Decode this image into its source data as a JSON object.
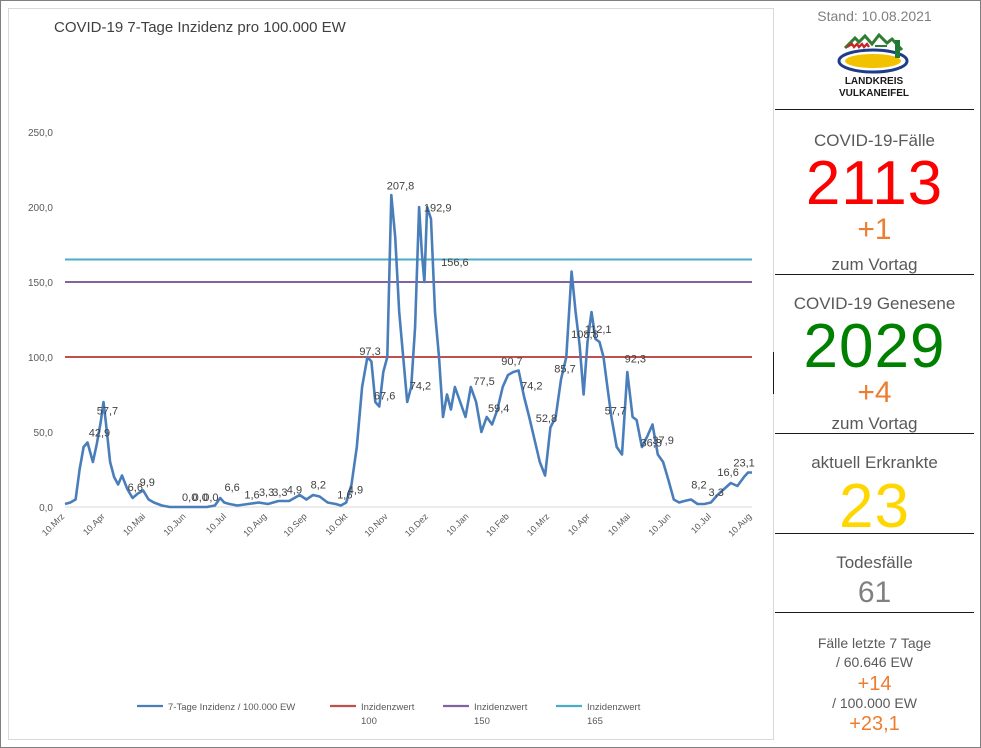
{
  "chart_data": {
    "type": "line",
    "title": "COVID-19 7-Tage Inzidenz pro 100.000 EW",
    "ylim": [
      0,
      250
    ],
    "yticks": [
      "0,0",
      "50,0",
      "100,0",
      "150,0",
      "200,0",
      "250,0"
    ],
    "x_start_date": "2020-03-10",
    "x_end_date": "2021-08-10",
    "xticks": [
      "10.Mrz",
      "10.Apr",
      "10.Mai",
      "10.Jun",
      "10.Jul",
      "10.Aug",
      "10.Sep",
      "10.Okt",
      "10.Nov",
      "10.Dez",
      "10.Jan",
      "10.Feb",
      "10.Mrz",
      "10.Apr",
      "10.Mai",
      "10.Jun",
      "10.Jul",
      "10.Aug"
    ],
    "grid": false,
    "legend_position": "bottom",
    "series": [
      {
        "name": "7-Tage Inzidenz / 100.000 EW",
        "color": "#4a7ebb",
        "x": [
          "2020-03-10",
          "2020-03-14",
          "2020-03-18",
          "2020-03-21",
          "2020-03-24",
          "2020-03-27",
          "2020-03-31",
          "2020-04-03",
          "2020-04-06",
          "2020-04-08",
          "2020-04-10",
          "2020-04-13",
          "2020-04-16",
          "2020-04-19",
          "2020-04-22",
          "2020-04-26",
          "2020-04-30",
          "2020-05-04",
          "2020-05-08",
          "2020-05-12",
          "2020-05-16",
          "2020-05-22",
          "2020-05-28",
          "2020-06-05",
          "2020-06-15",
          "2020-06-25",
          "2020-07-01",
          "2020-07-05",
          "2020-07-08",
          "2020-07-12",
          "2020-07-18",
          "2020-07-26",
          "2020-08-03",
          "2020-08-10",
          "2020-08-18",
          "2020-08-26",
          "2020-09-03",
          "2020-09-08",
          "2020-09-13",
          "2020-09-18",
          "2020-09-24",
          "2020-09-30",
          "2020-10-04",
          "2020-10-08",
          "2020-10-12",
          "2020-10-16",
          "2020-10-20",
          "2020-10-24",
          "2020-10-27",
          "2020-10-30",
          "2020-11-02",
          "2020-11-05",
          "2020-11-08",
          "2020-11-11",
          "2020-11-14",
          "2020-11-17",
          "2020-11-20",
          "2020-11-23",
          "2020-11-26",
          "2020-11-29",
          "2020-12-02",
          "2020-12-04",
          "2020-12-06",
          "2020-12-08",
          "2020-12-11",
          "2020-12-14",
          "2020-12-17",
          "2020-12-20",
          "2020-12-23",
          "2020-12-26",
          "2020-12-29",
          "2021-01-02",
          "2021-01-06",
          "2021-01-10",
          "2021-01-14",
          "2021-01-18",
          "2021-01-22",
          "2021-01-26",
          "2021-01-30",
          "2021-02-03",
          "2021-02-07",
          "2021-02-11",
          "2021-02-15",
          "2021-02-19",
          "2021-02-23",
          "2021-02-27",
          "2021-03-03",
          "2021-03-07",
          "2021-03-11",
          "2021-03-15",
          "2021-03-19",
          "2021-03-23",
          "2021-03-27",
          "2021-03-30",
          "2021-04-02",
          "2021-04-05",
          "2021-04-08",
          "2021-04-11",
          "2021-04-14",
          "2021-04-17",
          "2021-04-20",
          "2021-04-23",
          "2021-04-26",
          "2021-04-30",
          "2021-05-04",
          "2021-05-08",
          "2021-05-12",
          "2021-05-15",
          "2021-05-19",
          "2021-05-23",
          "2021-05-27",
          "2021-05-31",
          "2021-06-04",
          "2021-06-08",
          "2021-06-12",
          "2021-06-16",
          "2021-06-20",
          "2021-06-25",
          "2021-06-30",
          "2021-07-05",
          "2021-07-10",
          "2021-07-15",
          "2021-07-20",
          "2021-07-25",
          "2021-07-30",
          "2021-08-04",
          "2021-08-07",
          "2021-08-10"
        ],
        "y": [
          2,
          3,
          5,
          25,
          40,
          43,
          30,
          42,
          57,
          70,
          55,
          30,
          20,
          15,
          21,
          12,
          6,
          9,
          11,
          5,
          3,
          1,
          0,
          0,
          0,
          0,
          1,
          6,
          3,
          2,
          1,
          2,
          3,
          2,
          4,
          4,
          8,
          5,
          8,
          7,
          3,
          2,
          1,
          3,
          15,
          40,
          80,
          100,
          97,
          70,
          67,
          90,
          100,
          208,
          180,
          130,
          100,
          70,
          80,
          120,
          200,
          170,
          150,
          200,
          192,
          130,
          100,
          60,
          75,
          65,
          80,
          70,
          60,
          80,
          70,
          50,
          60,
          55,
          65,
          80,
          88,
          90,
          91,
          74,
          60,
          45,
          30,
          21,
          53,
          60,
          85,
          100,
          157,
          130,
          108,
          75,
          110,
          130,
          112,
          110,
          100,
          80,
          60,
          40,
          35,
          90,
          60,
          58,
          40,
          47,
          55,
          35,
          30,
          18,
          5,
          3,
          4,
          5,
          2,
          2,
          3,
          8,
          12,
          16,
          14,
          20,
          23,
          23
        ]
      }
    ],
    "reference_lines": [
      {
        "name": "Inzidenzwert 100",
        "value": 100,
        "color": "#c0504d"
      },
      {
        "name": "Inzidenzwert 150",
        "value": 150,
        "color": "#8064a2"
      },
      {
        "name": "Inzidenzwert 165",
        "value": 165,
        "color": "#4bacc6"
      }
    ],
    "annotations": [
      {
        "text": "42,9",
        "x": "2020-04-05",
        "y": 42.9
      },
      {
        "text": "57,7",
        "x": "2020-04-11",
        "y": 57.7
      },
      {
        "text": "6,6",
        "x": "2020-05-02",
        "y": 6.6
      },
      {
        "text": "9,9",
        "x": "2020-05-11",
        "y": 9.9
      },
      {
        "text": "0,0",
        "x": "2020-06-12",
        "y": 0
      },
      {
        "text": "0,0",
        "x": "2020-06-20",
        "y": 0
      },
      {
        "text": "0,0",
        "x": "2020-06-28",
        "y": 0
      },
      {
        "text": "6,6",
        "x": "2020-07-14",
        "y": 6.6
      },
      {
        "text": "1,6",
        "x": "2020-07-29",
        "y": 1.6
      },
      {
        "text": "3,3",
        "x": "2020-08-09",
        "y": 3.3
      },
      {
        "text": "3,3",
        "x": "2020-08-19",
        "y": 3.3
      },
      {
        "text": "4,9",
        "x": "2020-08-30",
        "y": 4.9
      },
      {
        "text": "8,2",
        "x": "2020-09-17",
        "y": 8.2
      },
      {
        "text": "1,6",
        "x": "2020-10-07",
        "y": 1.6
      },
      {
        "text": "4,9",
        "x": "2020-10-15",
        "y": 4.9
      },
      {
        "text": "97,3",
        "x": "2020-10-26",
        "y": 97.3
      },
      {
        "text": "67,6",
        "x": "2020-11-06",
        "y": 67.6
      },
      {
        "text": "207,8",
        "x": "2020-11-18",
        "y": 207.8
      },
      {
        "text": "74,2",
        "x": "2020-12-03",
        "y": 74.2
      },
      {
        "text": "192,9",
        "x": "2020-12-16",
        "y": 192.9
      },
      {
        "text": "156,6",
        "x": "2020-12-29",
        "y": 156.6
      },
      {
        "text": "77,5",
        "x": "2021-01-20",
        "y": 77.5
      },
      {
        "text": "59,4",
        "x": "2021-01-31",
        "y": 59.4
      },
      {
        "text": "90,7",
        "x": "2021-02-10",
        "y": 90.7
      },
      {
        "text": "74,2",
        "x": "2021-02-25",
        "y": 74.2
      },
      {
        "text": "52,8",
        "x": "2021-03-08",
        "y": 52.8
      },
      {
        "text": "85,7",
        "x": "2021-03-22",
        "y": 85.7
      },
      {
        "text": "108,8",
        "x": "2021-04-06",
        "y": 108.8
      },
      {
        "text": "112,1",
        "x": "2021-04-16",
        "y": 112.1
      },
      {
        "text": "57,7",
        "x": "2021-04-29",
        "y": 57.7
      },
      {
        "text": "92,3",
        "x": "2021-05-14",
        "y": 92.3
      },
      {
        "text": "36,3",
        "x": "2021-05-26",
        "y": 36.3
      },
      {
        "text": "37,9",
        "x": "2021-06-04",
        "y": 37.9
      },
      {
        "text": "8,2",
        "x": "2021-07-01",
        "y": 8.2
      },
      {
        "text": "3,3",
        "x": "2021-07-14",
        "y": 3.3
      },
      {
        "text": "16,6",
        "x": "2021-07-23",
        "y": 16.6
      },
      {
        "text": "23,1",
        "x": "2021-08-04",
        "y": 23.1
      }
    ]
  },
  "panel": {
    "stand": "Stand: 10.08.2021",
    "logo_line1": "LANDKREIS",
    "logo_line2": "VULKANEIFEL",
    "cases_label": "COVID-19-Fälle",
    "cases_value": "2113",
    "cases_delta": "+1",
    "cases_delta_label": "zum Vortag",
    "recovered_label": "COVID-19 Genesene",
    "recovered_value": "2029",
    "recovered_delta": "+4",
    "recovered_delta_label": "zum Vortag",
    "active_label": "aktuell Erkrankte",
    "active_value": "23",
    "deaths_label": "Todesfälle",
    "deaths_value": "61",
    "week_label1": "Fälle letzte 7 Tage",
    "week_label2": "/  60.646 EW",
    "week_value": "+14",
    "week_label3": "/ 100.000 EW",
    "week_incidence": "+23,1",
    "colors": {
      "cases": "#ff0000",
      "recovered": "#008000",
      "active": "#ffd700",
      "deaths": "#808080",
      "delta": "#ed7d31"
    }
  }
}
